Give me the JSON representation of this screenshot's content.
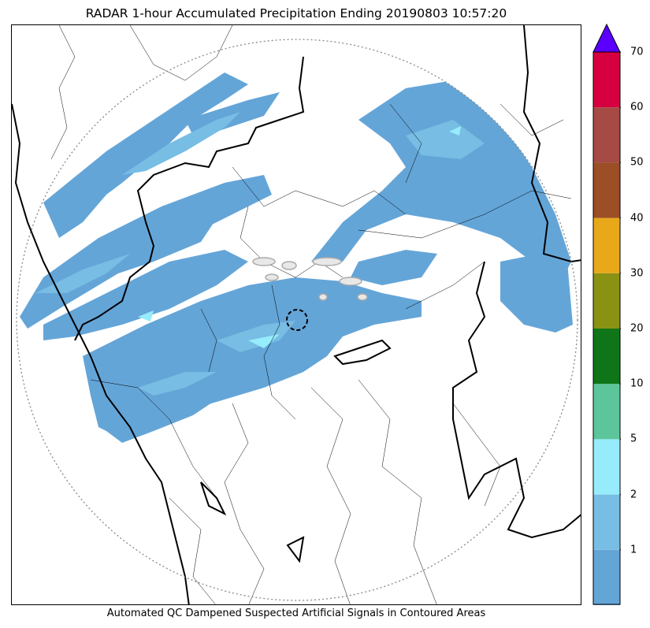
{
  "title": "RADAR 1-hour Accumulated Precipitation Ending 20190803 10:57:20",
  "caption": "Automated QC Dampened Suspected Artificial Signals in Contoured Areas",
  "colorbar": {
    "ticks": [
      "1",
      "2",
      "5",
      "10",
      "20",
      "30",
      "40",
      "50",
      "60",
      "70"
    ],
    "bins": [
      {
        "color": "#64a5d8"
      },
      {
        "color": "#77bde4"
      },
      {
        "color": "#96ecfb"
      },
      {
        "color": "#5dc59b"
      },
      {
        "color": "#0f7518"
      },
      {
        "color": "#8a9214"
      },
      {
        "color": "#e8a81a"
      },
      {
        "color": "#9c4e27"
      },
      {
        "color": "#a54a44"
      },
      {
        "color": "#d60040"
      }
    ],
    "over_color": "#5b00ff"
  },
  "colors": {
    "rain_light": "#64a5d8",
    "rain_mid": "#77bde4",
    "rain_heavy": "#96ecfb",
    "boundary": "#000000",
    "range_ring": "#888888"
  }
}
